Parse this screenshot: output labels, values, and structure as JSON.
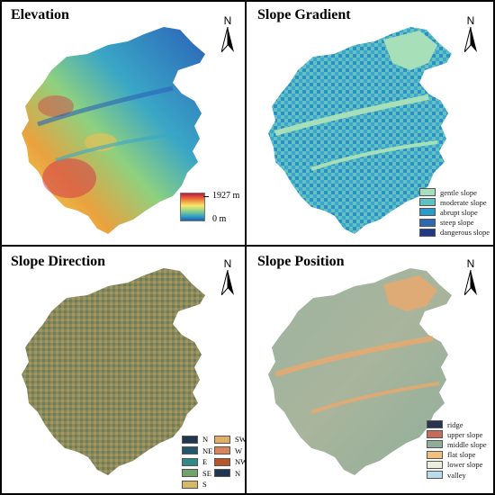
{
  "panels": {
    "elevation": {
      "title": "Elevation",
      "north": "N",
      "legend": {
        "max": "1927 m",
        "min": "0 m"
      }
    },
    "slope_gradient": {
      "title": "Slope Gradient",
      "north": "N",
      "legend": [
        {
          "label": "gentle slope",
          "color": "#a6dfb8"
        },
        {
          "label": "moderate slope",
          "color": "#5fc0c4"
        },
        {
          "label": "abrupt slope",
          "color": "#2a9ccc"
        },
        {
          "label": "steep slope",
          "color": "#2d68b2"
        },
        {
          "label": "dangerous slope",
          "color": "#1c3a86"
        }
      ]
    },
    "slope_direction": {
      "title": "Slope Direction",
      "north": "N",
      "legend_left": [
        {
          "label": "N",
          "color": "#1f3550"
        },
        {
          "label": "NE",
          "color": "#23576b"
        },
        {
          "label": "E",
          "color": "#2f8a88"
        },
        {
          "label": "SE",
          "color": "#6fa56a"
        },
        {
          "label": "S",
          "color": "#d7b86b"
        }
      ],
      "legend_right": [
        {
          "label": "SW",
          "color": "#e2ad66"
        },
        {
          "label": "W",
          "color": "#d9855a"
        },
        {
          "label": "NW",
          "color": "#b7552b"
        },
        {
          "label": "N",
          "color": "#1f3550"
        }
      ]
    },
    "slope_position": {
      "title": "Slope Position",
      "north": "N",
      "legend": [
        {
          "label": "ridge",
          "color": "#2a3350"
        },
        {
          "label": "upper slope",
          "color": "#c66a5c"
        },
        {
          "label": "middle slope",
          "color": "#8fae9a"
        },
        {
          "label": "flat slope",
          "color": "#f2c07d"
        },
        {
          "label": "lower slope",
          "color": "#eeeedd"
        },
        {
          "label": "valley",
          "color": "#b9dcec"
        }
      ]
    }
  }
}
